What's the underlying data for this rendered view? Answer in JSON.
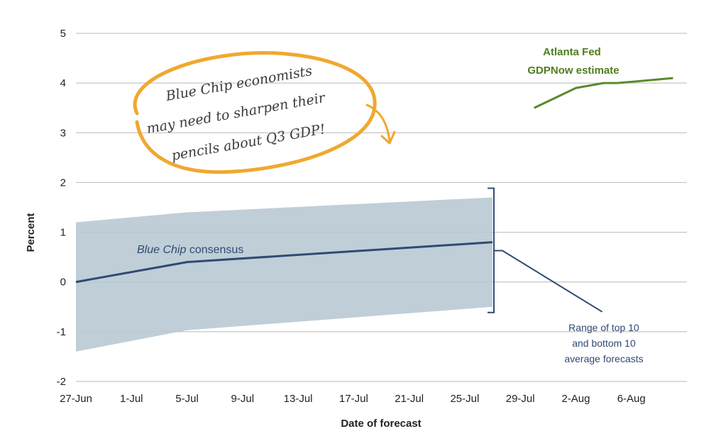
{
  "chart_data": {
    "type": "line",
    "xlabel": "Date of forecast",
    "ylabel": "Percent",
    "ylim": [
      -2,
      5
    ],
    "yticks": [
      -2,
      -1,
      0,
      1,
      2,
      3,
      4,
      5
    ],
    "xticks": [
      "27-Jun",
      "1-Jul",
      "5-Jul",
      "9-Jul",
      "13-Jul",
      "17-Jul",
      "21-Jul",
      "25-Jul",
      "29-Jul",
      "2-Aug",
      "6-Aug"
    ],
    "grid": "horizontal",
    "series": [
      {
        "name": "Blue Chip consensus",
        "color": "#2f4a73",
        "points": [
          [
            "2015-06-27",
            0.0
          ],
          [
            "2015-07-05",
            0.4
          ],
          [
            "2015-07-27",
            0.8
          ]
        ]
      },
      {
        "name": "Atlanta Fed GDPNow estimate",
        "color": "#5a8a2a",
        "points": [
          [
            "2015-07-30",
            3.5
          ],
          [
            "2015-08-02",
            3.9
          ],
          [
            "2015-08-04",
            4.0
          ],
          [
            "2015-08-05",
            4.0
          ],
          [
            "2015-08-09",
            4.1
          ]
        ]
      }
    ],
    "band": {
      "color": "#b9c9d3",
      "points": [
        {
          "x": "2015-06-27",
          "low": -1.4,
          "high": 1.2
        },
        {
          "x": "2015-07-05",
          "low": -0.97,
          "high": 1.4
        },
        {
          "x": "2015-07-27",
          "low": -0.5,
          "high": 1.7
        }
      ]
    },
    "annotations": {
      "blue_chip_label": {
        "italic": "Blue Chip",
        "rest": " consensus"
      },
      "gdpnow_label": [
        "Atlanta Fed",
        "GDPNow estimate"
      ],
      "range_label": [
        "Range of top 10",
        "and bottom 10",
        "average forecasts"
      ],
      "callout_lines": [
        "Blue Chip economists",
        "may need to sharpen their",
        "pencils about Q3 GDP!"
      ],
      "callout_color": "#f0a830"
    }
  }
}
